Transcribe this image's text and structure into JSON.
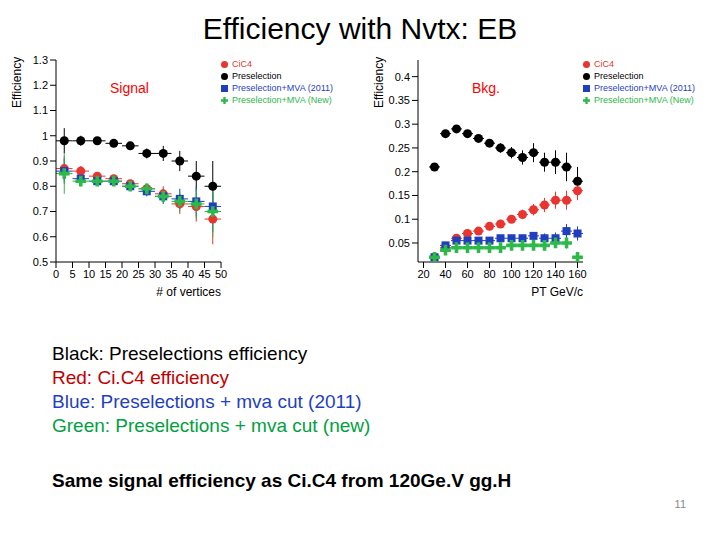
{
  "title": "Efficiency with Nvtx: EB",
  "chart_data": [
    {
      "type": "scatter",
      "annotation": "Signal",
      "annotation_color": "#ff0000",
      "x_label": "# of vertices",
      "y_label": "Efficiency",
      "x": [
        2.5,
        7.5,
        12.5,
        17.5,
        22.5,
        27.5,
        32.5,
        37.5,
        42.5,
        47.5
      ],
      "x_error": 2.5,
      "xlim": [
        0,
        50
      ],
      "xticks": [
        0,
        5,
        10,
        15,
        20,
        25,
        30,
        35,
        40,
        45,
        50
      ],
      "ylim": [
        0.5,
        1.3
      ],
      "yticks": [
        0.5,
        0.6,
        0.7,
        0.8,
        0.9,
        1,
        1.1,
        1.2,
        1.3
      ],
      "grid": false,
      "legend": "upper right",
      "series": [
        {
          "name": "Preselection",
          "color": "#000000",
          "marker": "circle",
          "values": [
            0.98,
            0.98,
            0.98,
            0.97,
            0.96,
            0.93,
            0.93,
            0.9,
            0.84,
            0.8
          ],
          "errors": [
            0.05,
            0.02,
            0.015,
            0.015,
            0.015,
            0.02,
            0.03,
            0.04,
            0.06,
            0.1
          ]
        },
        {
          "name": "CiC4",
          "color": "#e8352f",
          "marker": "circle",
          "values": [
            0.87,
            0.86,
            0.84,
            0.83,
            0.81,
            0.79,
            0.77,
            0.73,
            0.72,
            0.67
          ],
          "errors": [
            0.05,
            0.02,
            0.015,
            0.015,
            0.015,
            0.02,
            0.03,
            0.04,
            0.06,
            0.1
          ]
        },
        {
          "name": "Preselection+MVA (2011)",
          "color": "#1f3fbf",
          "marker": "square",
          "values": [
            0.86,
            0.83,
            0.82,
            0.82,
            0.8,
            0.78,
            0.76,
            0.75,
            0.74,
            0.72
          ],
          "errors": [
            0.05,
            0.02,
            0.015,
            0.015,
            0.015,
            0.02,
            0.03,
            0.04,
            0.06,
            0.1
          ]
        },
        {
          "name": "Preselection+MVA (New)",
          "color": "#2db84a",
          "marker": "cross",
          "values": [
            0.85,
            0.82,
            0.82,
            0.82,
            0.8,
            0.79,
            0.76,
            0.74,
            0.73,
            0.7
          ],
          "errors": [
            0.08,
            0.02,
            0.015,
            0.015,
            0.015,
            0.02,
            0.03,
            0.04,
            0.06,
            0.1
          ]
        }
      ]
    },
    {
      "type": "scatter",
      "annotation": "Bkg.",
      "annotation_color": "#ff0000",
      "x_label": "PT GeV/c",
      "y_label": "Efficiency",
      "x": [
        30,
        40,
        50,
        60,
        70,
        80,
        90,
        100,
        110,
        120,
        130,
        140,
        150,
        160
      ],
      "x_error": 5,
      "xlim": [
        15,
        165
      ],
      "xticks": [
        20,
        40,
        60,
        80,
        100,
        120,
        140,
        160
      ],
      "ylim": [
        0.01,
        0.435
      ],
      "yticks": [
        0.05,
        0.1,
        0.15,
        0.2,
        0.25,
        0.3,
        0.35,
        0.4
      ],
      "grid": false,
      "legend": "upper right",
      "series": [
        {
          "name": "Preselection",
          "color": "#000000",
          "marker": "circle",
          "values": [
            0.21,
            0.28,
            0.29,
            0.28,
            0.27,
            0.26,
            0.25,
            0.24,
            0.23,
            0.24,
            0.22,
            0.22,
            0.21,
            0.18
          ],
          "errors": [
            0.005,
            0.005,
            0.005,
            0.006,
            0.007,
            0.008,
            0.01,
            0.012,
            0.015,
            0.02,
            0.02,
            0.025,
            0.03,
            0.03
          ]
        },
        {
          "name": "CiC4",
          "color": "#e8352f",
          "marker": "circle",
          "values": [
            0.02,
            0.04,
            0.06,
            0.07,
            0.075,
            0.085,
            0.09,
            0.1,
            0.11,
            0.12,
            0.13,
            0.14,
            0.14,
            0.16
          ],
          "errors": [
            0.003,
            0.003,
            0.004,
            0.004,
            0.005,
            0.006,
            0.007,
            0.008,
            0.01,
            0.012,
            0.015,
            0.018,
            0.02,
            0.02
          ]
        },
        {
          "name": "Preselection+MVA (2011)",
          "color": "#1f3fbf",
          "marker": "square",
          "values": [
            0.02,
            0.045,
            0.055,
            0.055,
            0.055,
            0.055,
            0.06,
            0.06,
            0.06,
            0.065,
            0.06,
            0.06,
            0.075,
            0.07
          ],
          "errors": [
            0.003,
            0.003,
            0.003,
            0.004,
            0.004,
            0.005,
            0.005,
            0.006,
            0.007,
            0.008,
            0.01,
            0.012,
            0.015,
            0.015
          ]
        },
        {
          "name": "Preselection+MVA (New)",
          "color": "#2db84a",
          "marker": "cross",
          "values": [
            0.02,
            0.035,
            0.04,
            0.04,
            0.04,
            0.04,
            0.04,
            0.045,
            0.045,
            0.045,
            0.045,
            0.05,
            0.05,
            0.02
          ],
          "errors": [
            0.003,
            0.003,
            0.003,
            0.003,
            0.004,
            0.004,
            0.005,
            0.005,
            0.006,
            0.007,
            0.008,
            0.01,
            0.012,
            0.01
          ]
        }
      ]
    }
  ],
  "notes": [
    {
      "text": "Black:  Preselections efficiency",
      "color": "#000000"
    },
    {
      "text": "Red: Ci.C4 efficiency",
      "color": "#c00000"
    },
    {
      "text": "Blue: Preselections + mva cut (2011)",
      "color": "#1f3fbf"
    },
    {
      "text": "Green: Preselections + mva cut (new)",
      "color": "#00a040"
    }
  ],
  "footer": "Same signal efficiency as Ci.C4  from 120Ge.V gg.H",
  "page": 11
}
